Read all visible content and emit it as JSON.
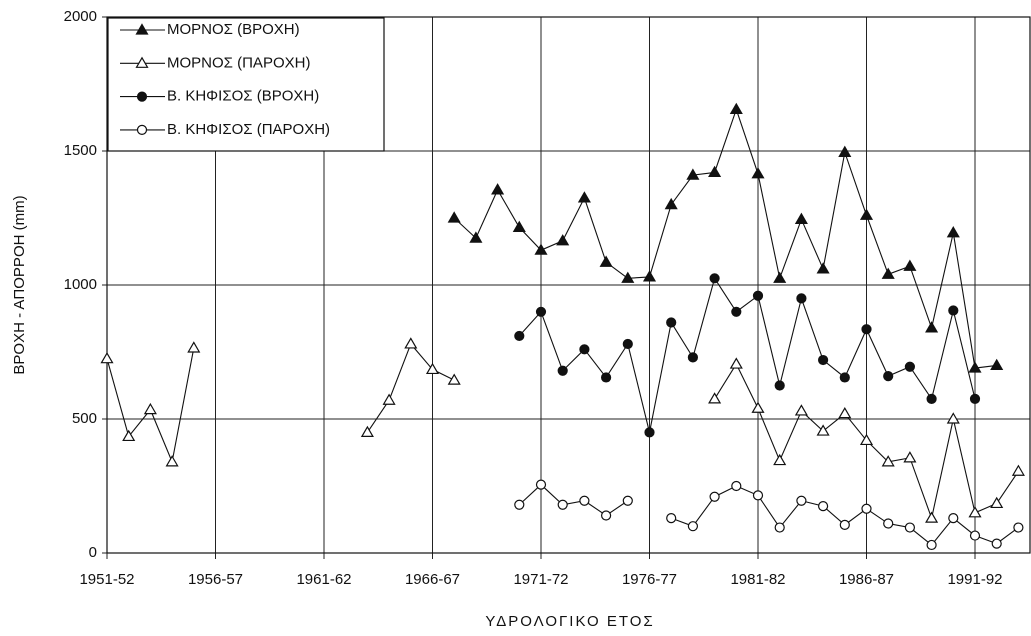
{
  "chart_data": {
    "type": "line",
    "x_label": "ΥΔΡΟΛΟΓΙΚΟ ΕΤΟΣ",
    "y_label": "ΒΡΟΧΗ - ΑΠΟΡΡΟΗ (mm)",
    "categories": [
      "1951-52",
      null,
      null,
      null,
      null,
      "1956-57",
      null,
      null,
      null,
      null,
      "1961-62",
      null,
      null,
      null,
      null,
      "1966-67",
      null,
      null,
      null,
      null,
      "1971-72",
      null,
      null,
      null,
      null,
      "1976-77",
      null,
      null,
      null,
      null,
      "1981-82",
      null,
      null,
      null,
      null,
      "1986-87",
      null,
      null,
      null,
      null,
      "1991-92",
      null,
      null
    ],
    "ylim": [
      0,
      2000
    ],
    "yticks": [
      0,
      500,
      1000,
      1500,
      2000
    ],
    "grid": true,
    "legend": "upper left",
    "series": [
      {
        "name": "ΜΟΡΝΟΣ (ΒΡΟΧΗ)",
        "color": "#111111",
        "marker": "triangle",
        "filled": true,
        "values": [
          null,
          null,
          null,
          null,
          null,
          null,
          null,
          null,
          null,
          null,
          null,
          null,
          null,
          null,
          null,
          null,
          1250,
          1175,
          1355,
          1215,
          1130,
          1165,
          1325,
          1085,
          1025,
          1030,
          1300,
          1410,
          1420,
          1655,
          1415,
          1025,
          1245,
          1060,
          1495,
          1260,
          1040,
          1070,
          840,
          1195,
          690,
          700,
          null
        ]
      },
      {
        "name": "ΜΟΡΝΟΣ (ΠΑΡΟΧΗ)",
        "color": "#111111",
        "marker": "triangle",
        "filled": false,
        "values": [
          725,
          435,
          535,
          340,
          765,
          null,
          null,
          null,
          null,
          null,
          null,
          null,
          450,
          570,
          780,
          685,
          645,
          null,
          null,
          null,
          null,
          null,
          null,
          null,
          null,
          null,
          null,
          null,
          575,
          705,
          540,
          345,
          530,
          455,
          520,
          420,
          340,
          355,
          130,
          500,
          150,
          185,
          305
        ]
      },
      {
        "name": "Β. ΚΗΦΙΣΟΣ (ΒΡΟΧΗ)",
        "color": "#111111",
        "marker": "circle",
        "filled": true,
        "values": [
          null,
          null,
          null,
          null,
          null,
          null,
          null,
          null,
          null,
          null,
          null,
          null,
          null,
          null,
          null,
          null,
          null,
          null,
          null,
          810,
          900,
          680,
          760,
          655,
          780,
          450,
          860,
          730,
          1025,
          900,
          960,
          625,
          950,
          720,
          655,
          835,
          660,
          695,
          575,
          905,
          575,
          null,
          null
        ]
      },
      {
        "name": "Β. ΚΗΦΙΣΟΣ (ΠΑΡΟΧΗ)",
        "color": "#111111",
        "marker": "circle",
        "filled": false,
        "values": [
          null,
          null,
          null,
          null,
          null,
          null,
          null,
          null,
          null,
          null,
          null,
          null,
          null,
          null,
          null,
          null,
          null,
          null,
          null,
          180,
          255,
          180,
          195,
          140,
          195,
          null,
          130,
          100,
          210,
          250,
          215,
          95,
          195,
          175,
          105,
          165,
          110,
          95,
          30,
          130,
          65,
          35,
          95
        ]
      }
    ]
  }
}
